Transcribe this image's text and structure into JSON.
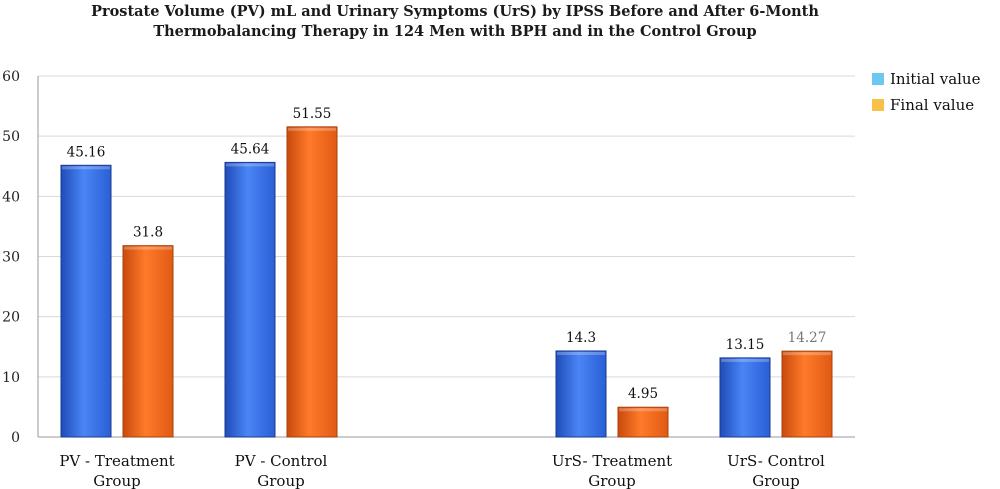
{
  "chart_data": {
    "type": "bar",
    "title": [
      "Prostate Volume (PV) mL and Urinary Symptoms (UrS) by IPSS Before and After 6-Month",
      "Thermobalancing Therapy in 124 Men with BPH and in the Control Group"
    ],
    "categories": [
      [
        "PV - Treatment",
        "Group"
      ],
      [
        "PV - Control",
        "Group"
      ],
      [
        "",
        ""
      ],
      [
        "UrS- Treatment",
        "Group"
      ],
      [
        "UrS- Control",
        "Group"
      ]
    ],
    "series": [
      {
        "name": "Initial value",
        "color": "#3a6fe0",
        "values": [
          45.16,
          45.64,
          null,
          14.3,
          13.15
        ],
        "labels": [
          "45.16",
          "45.64",
          "",
          "14.3",
          "13.15"
        ]
      },
      {
        "name": "Final value",
        "color": "#f26a1b",
        "values": [
          31.8,
          51.55,
          null,
          4.95,
          14.27
        ],
        "labels": [
          "31.8",
          "51.55",
          "",
          "4.95",
          "14.27"
        ]
      }
    ],
    "ylim": [
      0,
      60
    ],
    "yticks": [
      0,
      10,
      20,
      30,
      40,
      50,
      60
    ],
    "grid": true,
    "legend": {
      "position": "right",
      "items": [
        {
          "label": "Initial value",
          "color": "#6cc8f0"
        },
        {
          "label": "Final value",
          "color": "#f8c04a"
        }
      ]
    }
  }
}
